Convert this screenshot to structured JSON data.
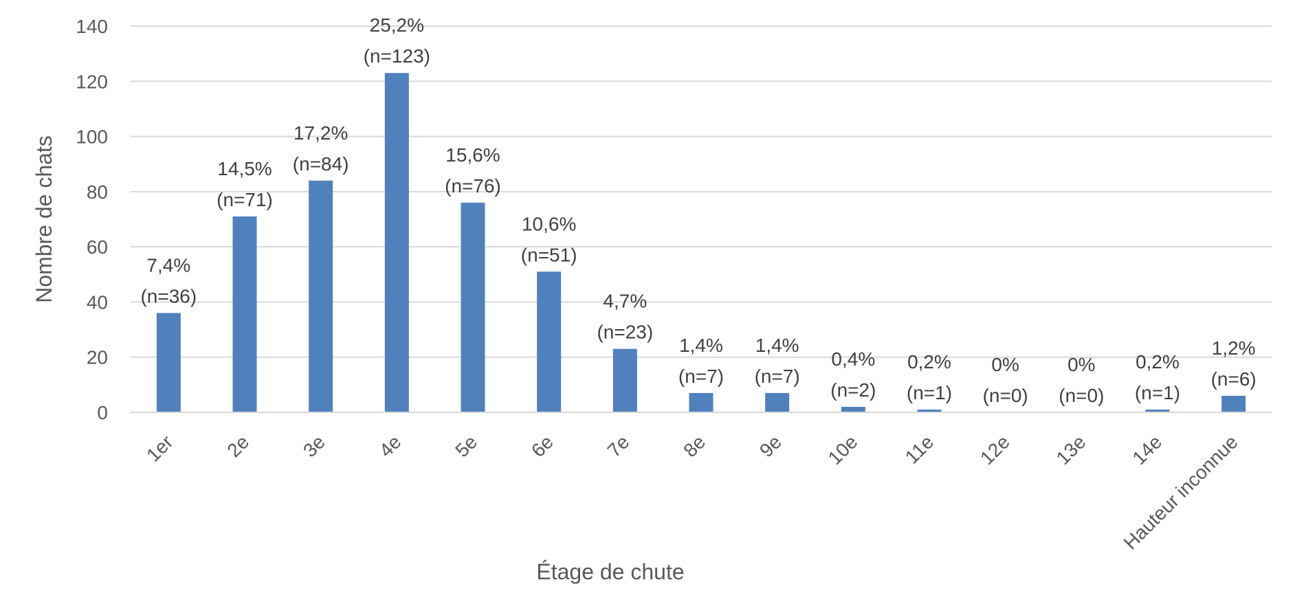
{
  "chart_data": {
    "type": "bar",
    "xlabel": "Étage de chute",
    "ylabel": "Nombre de chats",
    "ylim": [
      0,
      140
    ],
    "yticks": [
      0,
      20,
      40,
      60,
      80,
      100,
      120,
      140
    ],
    "grid": true,
    "bar_color": "#4f81bd",
    "categories": [
      "1er",
      "2e",
      "3e",
      "4e",
      "5e",
      "6e",
      "7e",
      "8e",
      "9e",
      "10e",
      "11e",
      "12e",
      "13e",
      "14e",
      "Hauteur inconnue"
    ],
    "values": [
      36,
      71,
      84,
      123,
      76,
      51,
      23,
      7,
      7,
      2,
      1,
      0,
      0,
      1,
      6
    ],
    "data_labels": [
      [
        "7,4%",
        "(n=36)"
      ],
      [
        "14,5%",
        "(n=71)"
      ],
      [
        "17,2%",
        "(n=84)"
      ],
      [
        "25,2%",
        "(n=123)"
      ],
      [
        "15,6%",
        "(n=76)"
      ],
      [
        "10,6%",
        "(n=51)"
      ],
      [
        "4,7%",
        "(n=23)"
      ],
      [
        "1,4%",
        "(n=7)"
      ],
      [
        "1,4%",
        "(n=7)"
      ],
      [
        "0,4%",
        "(n=2)"
      ],
      [
        "0,2%",
        "(n=1)"
      ],
      [
        "0%",
        "(n=0)"
      ],
      [
        "0%",
        "(n=0)"
      ],
      [
        "0,2%",
        "(n=1)"
      ],
      [
        "1,2%",
        "(n=6)"
      ]
    ]
  }
}
